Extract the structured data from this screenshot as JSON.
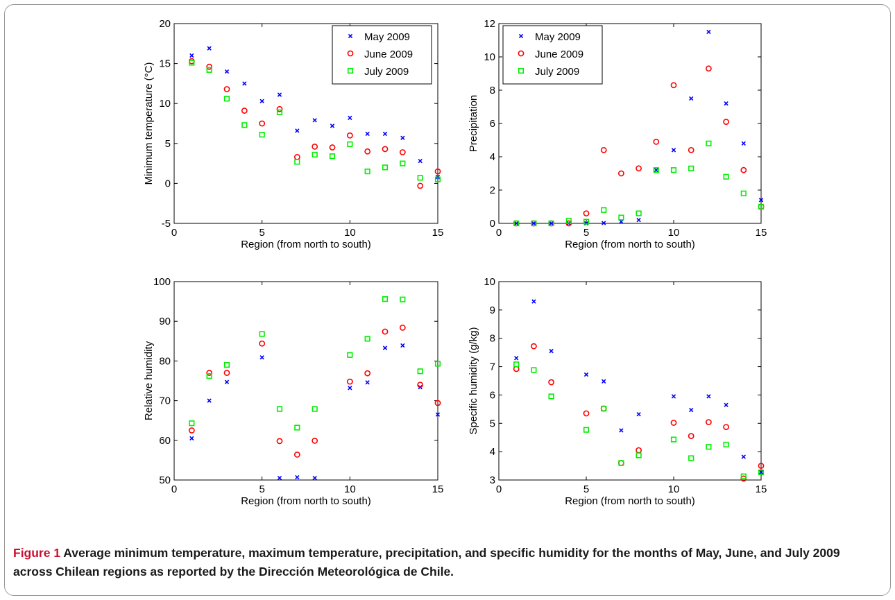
{
  "caption": {
    "figure_label": "Figure 1",
    "text": " Average minimum temperature, maximum temperature, precipitation, and specific humidity for the months of May, June, and July 2009 across Chilean regions as reported by the Dirección Meteorológica de Chile."
  },
  "colors": {
    "may": "#0000ff",
    "june": "#ff0000",
    "july": "#00ee00"
  },
  "chart_data": [
    {
      "type": "scatter",
      "title": "",
      "xlabel": "Region (from north to south)",
      "ylabel": "Minimum temperature (°C)",
      "xlim": [
        0,
        15
      ],
      "ylim": [
        -5,
        20
      ],
      "xticks": [
        0,
        5,
        10,
        15
      ],
      "yticks": [
        -5,
        0,
        5,
        10,
        15,
        20
      ],
      "legend": "top-right",
      "x": [
        1,
        2,
        3,
        4,
        5,
        6,
        7,
        8,
        9,
        10,
        11,
        12,
        13,
        14,
        15
      ],
      "series": [
        {
          "name": "May 2009",
          "marker": "x",
          "values": [
            16.0,
            16.9,
            14.0,
            12.5,
            10.3,
            11.1,
            6.6,
            7.9,
            7.2,
            8.2,
            6.2,
            6.2,
            5.7,
            2.8,
            0.8
          ]
        },
        {
          "name": "June 2009",
          "marker": "o",
          "values": [
            15.3,
            14.6,
            11.8,
            9.1,
            7.5,
            9.3,
            3.3,
            4.6,
            4.5,
            6.0,
            4.0,
            4.3,
            3.9,
            -0.3,
            1.5
          ]
        },
        {
          "name": "July 2009",
          "marker": "s",
          "values": [
            15.1,
            14.2,
            10.6,
            7.3,
            6.1,
            8.9,
            2.7,
            3.6,
            3.4,
            4.9,
            1.5,
            2.0,
            2.5,
            0.7,
            0.5
          ]
        }
      ]
    },
    {
      "type": "scatter",
      "title": "",
      "xlabel": "Region (from north to south)",
      "ylabel": "Precipitation",
      "xlim": [
        0,
        15
      ],
      "ylim": [
        0,
        12
      ],
      "xticks": [
        0,
        5,
        10,
        15
      ],
      "yticks": [
        0,
        2,
        4,
        6,
        8,
        10,
        12
      ],
      "legend": "top-left",
      "x": [
        1,
        2,
        3,
        4,
        5,
        6,
        7,
        8,
        9,
        10,
        11,
        12,
        13,
        14,
        15
      ],
      "series": [
        {
          "name": "May 2009",
          "marker": "x",
          "values": [
            0,
            0,
            0,
            0,
            0,
            0.02,
            0.1,
            0.2,
            3.2,
            4.4,
            7.5,
            11.5,
            7.2,
            4.8,
            1.4
          ]
        },
        {
          "name": "June 2009",
          "marker": "o",
          "values": [
            0,
            0,
            0,
            0,
            0.6,
            4.4,
            3.0,
            3.3,
            4.9,
            8.3,
            4.4,
            9.3,
            6.1,
            3.2,
            1.0
          ]
        },
        {
          "name": "July 2009",
          "marker": "s",
          "values": [
            0,
            0,
            0,
            0.15,
            0.1,
            0.8,
            0.35,
            0.6,
            3.2,
            3.2,
            3.3,
            4.8,
            2.8,
            1.8,
            1.0
          ]
        }
      ]
    },
    {
      "type": "scatter",
      "title": "",
      "xlabel": "Region (from north to south)",
      "ylabel": "Relative humidity",
      "xlim": [
        0,
        15
      ],
      "ylim": [
        50,
        100
      ],
      "xticks": [
        0,
        5,
        10,
        15
      ],
      "yticks": [
        50,
        60,
        70,
        80,
        90,
        100
      ],
      "legend": "none",
      "x": [
        1,
        2,
        3,
        4,
        5,
        6,
        7,
        8,
        9,
        10,
        11,
        12,
        13,
        14,
        15
      ],
      "series": [
        {
          "name": "May 2009",
          "marker": "x",
          "values": [
            60.5,
            70.0,
            74.7,
            null,
            80.9,
            50.5,
            50.7,
            50.5,
            null,
            73.2,
            74.6,
            83.3,
            83.9,
            73.4,
            66.5
          ]
        },
        {
          "name": "June 2009",
          "marker": "o",
          "values": [
            62.5,
            77.0,
            77.0,
            null,
            84.4,
            59.8,
            56.4,
            59.9,
            null,
            74.8,
            76.9,
            87.4,
            88.4,
            74.0,
            69.4
          ]
        },
        {
          "name": "July 2009",
          "marker": "s",
          "values": [
            64.3,
            76.2,
            79.0,
            null,
            86.8,
            67.9,
            63.2,
            67.9,
            null,
            81.5,
            85.6,
            95.6,
            95.5,
            77.4,
            79.3
          ]
        }
      ]
    },
    {
      "type": "scatter",
      "title": "",
      "xlabel": "Region (from north to south)",
      "ylabel": "Specific humidity (g/kg)",
      "xlim": [
        0,
        15
      ],
      "ylim": [
        3,
        10
      ],
      "xticks": [
        0,
        5,
        10,
        15
      ],
      "yticks": [
        3,
        4,
        5,
        6,
        7,
        8,
        9,
        10
      ],
      "legend": "none",
      "x": [
        1,
        2,
        3,
        4,
        5,
        6,
        7,
        8,
        9,
        10,
        11,
        12,
        13,
        14,
        15
      ],
      "series": [
        {
          "name": "May 2009",
          "marker": "x",
          "values": [
            7.3,
            9.3,
            7.55,
            null,
            6.72,
            6.48,
            4.75,
            5.32,
            null,
            5.95,
            5.47,
            5.95,
            5.65,
            3.82,
            3.28
          ]
        },
        {
          "name": "June 2009",
          "marker": "o",
          "values": [
            6.92,
            7.72,
            6.45,
            null,
            5.35,
            5.52,
            3.6,
            4.05,
            null,
            5.02,
            4.55,
            5.04,
            4.87,
            3.05,
            3.5
          ]
        },
        {
          "name": "July 2009",
          "marker": "s",
          "values": [
            7.08,
            6.88,
            5.95,
            null,
            4.77,
            5.52,
            3.6,
            3.87,
            null,
            4.43,
            3.77,
            4.17,
            4.25,
            3.13,
            3.27
          ]
        }
      ]
    }
  ]
}
